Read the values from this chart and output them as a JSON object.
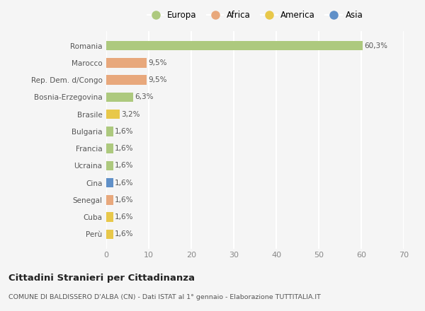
{
  "countries": [
    "Romania",
    "Marocco",
    "Rep. Dem. d/Congo",
    "Bosnia-Erzegovina",
    "Brasile",
    "Bulgaria",
    "Francia",
    "Ucraina",
    "Cina",
    "Senegal",
    "Cuba",
    "Perù"
  ],
  "values": [
    60.3,
    9.5,
    9.5,
    6.3,
    3.2,
    1.6,
    1.6,
    1.6,
    1.6,
    1.6,
    1.6,
    1.6
  ],
  "continents": [
    "Europa",
    "Africa",
    "Africa",
    "Europa",
    "America",
    "Europa",
    "Europa",
    "Europa",
    "Asia",
    "Africa",
    "America",
    "America"
  ],
  "colors": {
    "Europa": "#adc97e",
    "Africa": "#e8a87c",
    "America": "#e8c84a",
    "Asia": "#6090c8"
  },
  "xlim": [
    0,
    70
  ],
  "xticks": [
    0,
    10,
    20,
    30,
    40,
    50,
    60,
    70
  ],
  "title": "Cittadini Stranieri per Cittadinanza",
  "subtitle": "COMUNE DI BALDISSERO D'ALBA (CN) - Dati ISTAT al 1° gennaio - Elaborazione TUTTITALIA.IT",
  "background_color": "#f5f5f5",
  "grid_color": "#ffffff",
  "bar_height": 0.55,
  "legend_order": [
    "Europa",
    "Africa",
    "America",
    "Asia"
  ]
}
